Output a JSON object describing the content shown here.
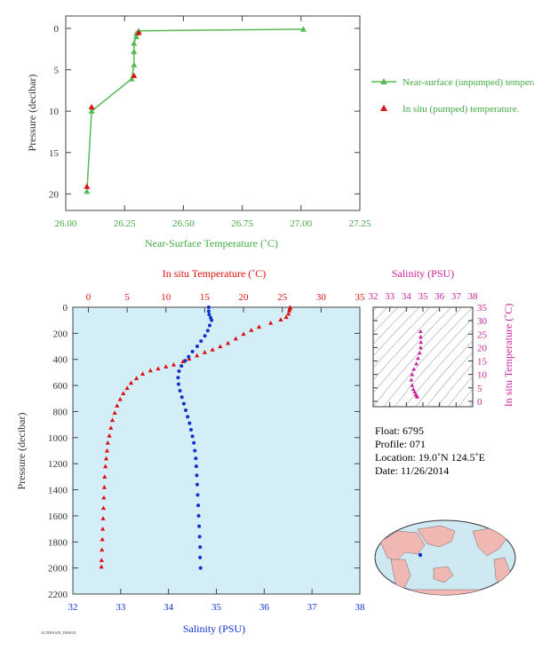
{
  "chart_data": [
    {
      "type": "line",
      "xlabel": "Near-Surface Temperature (˚C)",
      "ylabel": "Pressure (decibar)",
      "xlim": [
        26.0,
        27.25
      ],
      "ylim": [
        22,
        -1.5
      ],
      "xticks": [
        "26.00",
        "26.25",
        "26.50",
        "26.75",
        "27.00",
        "27.25"
      ],
      "xtick_values": [
        26.0,
        26.25,
        26.5,
        26.75,
        27.0,
        27.25
      ],
      "ytick_values": [
        0,
        5,
        10,
        15,
        20
      ],
      "grid": false,
      "legend_position": "right",
      "series": [
        {
          "name": "Near-surface (unpumped) temperature.",
          "color": "#55bb55",
          "marker": "triangle",
          "points": [
            [
              27.01,
              0.1
            ],
            [
              26.31,
              0.3
            ],
            [
              26.3,
              0.6
            ],
            [
              26.3,
              1.0
            ],
            [
              26.29,
              1.8
            ],
            [
              26.29,
              2.8
            ],
            [
              26.29,
              4.4
            ],
            [
              26.28,
              6.1
            ],
            [
              26.11,
              10.0
            ],
            [
              26.09,
              19.7
            ]
          ]
        },
        {
          "name": "In situ (pumped) temperature.",
          "color": "#dd1111",
          "marker": "triangle",
          "points": [
            [
              26.31,
              0.5
            ],
            [
              26.29,
              5.7
            ],
            [
              26.11,
              9.5
            ],
            [
              26.09,
              19.1
            ]
          ]
        }
      ]
    },
    {
      "type": "scatter",
      "ylabel": "Pressure (decibar)",
      "top_xlabel": "In situ Temperature (˚C)",
      "bottom_xlabel": "Salinity (PSU)",
      "temp_lim": [
        -2,
        35
      ],
      "sal_lim": [
        32,
        38
      ],
      "ylim": [
        2200,
        0
      ],
      "temp_ticks": [
        0,
        5,
        10,
        15,
        20,
        25,
        30,
        35
      ],
      "sal_ticks": [
        32,
        33,
        34,
        35,
        36,
        37,
        38
      ],
      "pressure_ticks": [
        0,
        200,
        400,
        600,
        800,
        1000,
        1200,
        1400,
        1600,
        1800,
        2000,
        2200
      ],
      "background": "#d4eef8",
      "series": [
        {
          "name": "Temperature",
          "color": "#dd1111",
          "marker": "triangle",
          "points": [
            [
              26.0,
              0
            ],
            [
              26.0,
              10
            ],
            [
              25.9,
              25
            ],
            [
              25.8,
              50
            ],
            [
              25.5,
              75
            ],
            [
              24.8,
              95
            ],
            [
              23.5,
              120
            ],
            [
              22.0,
              150
            ],
            [
              21.0,
              175
            ],
            [
              20.0,
              205
            ],
            [
              19.0,
              240
            ],
            [
              18.0,
              275
            ],
            [
              17.0,
              300
            ],
            [
              16.0,
              325
            ],
            [
              15.0,
              345
            ],
            [
              14.0,
              370
            ],
            [
              13.0,
              395
            ],
            [
              12.2,
              415
            ],
            [
              11.0,
              440
            ],
            [
              10.0,
              455
            ],
            [
              9.0,
              470
            ],
            [
              8.0,
              485
            ],
            [
              7.0,
              510
            ],
            [
              6.2,
              545
            ],
            [
              5.5,
              580
            ],
            [
              5.0,
              620
            ],
            [
              4.5,
              660
            ],
            [
              4.1,
              705
            ],
            [
              3.7,
              755
            ],
            [
              3.4,
              810
            ],
            [
              3.1,
              865
            ],
            [
              2.9,
              925
            ],
            [
              2.7,
              985
            ],
            [
              2.5,
              1040
            ],
            [
              2.4,
              1100
            ],
            [
              2.3,
              1160
            ],
            [
              2.2,
              1220
            ],
            [
              2.1,
              1300
            ],
            [
              2.05,
              1380
            ],
            [
              2.0,
              1460
            ],
            [
              1.95,
              1540
            ],
            [
              1.9,
              1620
            ],
            [
              1.85,
              1700
            ],
            [
              1.8,
              1780
            ],
            [
              1.75,
              1860
            ],
            [
              1.7,
              1940
            ],
            [
              1.68,
              1990
            ]
          ]
        },
        {
          "name": "Salinity",
          "color": "#1133cc",
          "marker": "dot",
          "points": [
            [
              34.84,
              0
            ],
            [
              34.84,
              30
            ],
            [
              34.85,
              55
            ],
            [
              34.88,
              80
            ],
            [
              34.9,
              100
            ],
            [
              34.86,
              140
            ],
            [
              34.82,
              180
            ],
            [
              34.76,
              220
            ],
            [
              34.68,
              260
            ],
            [
              34.6,
              300
            ],
            [
              34.5,
              340
            ],
            [
              34.42,
              380
            ],
            [
              34.35,
              410
            ],
            [
              34.27,
              450
            ],
            [
              34.22,
              490
            ],
            [
              34.2,
              540
            ],
            [
              34.21,
              590
            ],
            [
              34.24,
              640
            ],
            [
              34.28,
              690
            ],
            [
              34.32,
              740
            ],
            [
              34.36,
              790
            ],
            [
              34.4,
              840
            ],
            [
              34.44,
              890
            ],
            [
              34.47,
              940
            ],
            [
              34.5,
              990
            ],
            [
              34.53,
              1040
            ],
            [
              34.55,
              1100
            ],
            [
              34.57,
              1160
            ],
            [
              34.58,
              1220
            ],
            [
              34.59,
              1290
            ],
            [
              34.6,
              1360
            ],
            [
              34.61,
              1440
            ],
            [
              34.62,
              1520
            ],
            [
              34.63,
              1600
            ],
            [
              34.64,
              1680
            ],
            [
              34.65,
              1760
            ],
            [
              34.66,
              1840
            ],
            [
              34.66,
              1920
            ],
            [
              34.67,
              2000
            ]
          ]
        }
      ]
    },
    {
      "type": "scatter",
      "title": "Salinity (PSU)",
      "ylabel": "In situ Temperature (˚C)",
      "xlim": [
        32,
        38
      ],
      "ylim": [
        -2,
        35
      ],
      "sal_ticks": [
        32,
        33,
        34,
        35,
        36,
        37,
        38
      ],
      "temp_ticks": [
        0,
        5,
        10,
        15,
        20,
        25,
        30,
        35
      ],
      "color": "#cc2299",
      "points": [
        [
          34.85,
          26
        ],
        [
          34.86,
          24
        ],
        [
          34.88,
          22
        ],
        [
          34.86,
          20
        ],
        [
          34.8,
          18
        ],
        [
          34.7,
          16
        ],
        [
          34.6,
          14
        ],
        [
          34.45,
          12
        ],
        [
          34.35,
          10
        ],
        [
          34.3,
          8
        ],
        [
          34.35,
          6
        ],
        [
          34.42,
          4.5
        ],
        [
          34.5,
          3.5
        ],
        [
          34.58,
          2.5
        ],
        [
          34.64,
          2.0
        ],
        [
          34.66,
          1.7
        ]
      ]
    }
  ],
  "info": {
    "float": "Float:  6795",
    "profile": "Profile:  071",
    "location": "Location:  19.0˚N  124.5˚E",
    "date": "Date:  11/26/2014"
  },
  "map": {
    "label": "world-map-with-float-location",
    "marker_color": "#1133cc"
  },
  "footer": "ALTERNATE_DESIGN"
}
